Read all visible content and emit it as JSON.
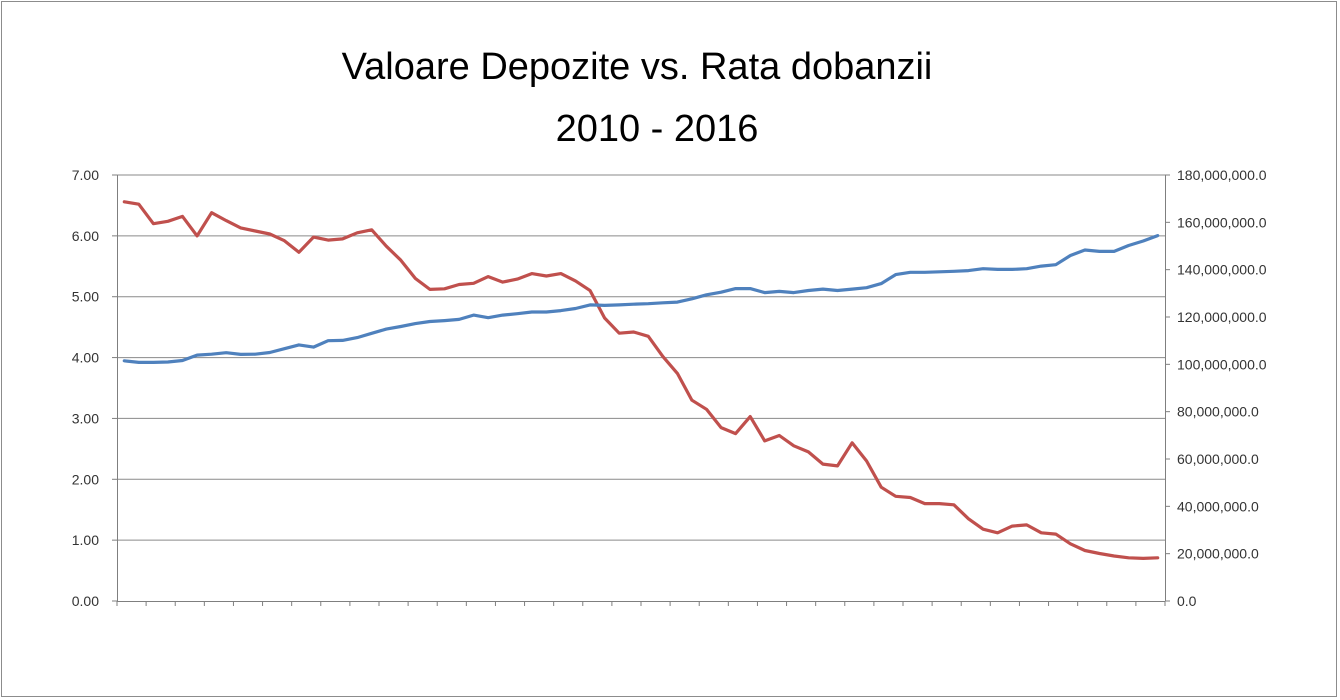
{
  "chart_data": {
    "type": "line",
    "title": "Valoare Depozite vs. Rata dobanzii",
    "subtitle": "2010 - 2016",
    "xlabel": "",
    "ylabel": "",
    "y_left_ticks": [
      "0.00",
      "1.00",
      "2.00",
      "3.00",
      "4.00",
      "5.00",
      "6.00",
      "7.00"
    ],
    "y_right_ticks": [
      "0.0",
      "20,000,000.0",
      "40,000,000.0",
      "60,000,000.0",
      "80,000,000.0",
      "100,000,000.0",
      "120,000,000.0",
      "140,000,000.0",
      "160,000,000.0",
      "180,000,000.0"
    ],
    "ylim_left": [
      0,
      7
    ],
    "ylim_right": [
      0,
      180000000
    ],
    "grid": true,
    "legend": "none",
    "x_count": 72,
    "series": [
      {
        "axis": "left",
        "color": "#c0504d",
        "values": [
          6.56,
          6.52,
          6.2,
          6.24,
          6.32,
          6.0,
          6.38,
          6.25,
          6.13,
          6.08,
          6.03,
          5.92,
          5.73,
          5.98,
          5.93,
          5.95,
          6.05,
          6.1,
          5.83,
          5.6,
          5.3,
          5.12,
          5.13,
          5.2,
          5.22,
          5.33,
          5.24,
          5.29,
          5.38,
          5.34,
          5.38,
          5.26,
          5.1,
          4.65,
          4.4,
          4.42,
          4.35,
          4.02,
          3.74,
          3.3,
          3.15,
          2.85,
          2.75,
          3.03,
          2.63,
          2.72,
          2.55,
          2.45,
          2.25,
          2.22,
          2.6,
          2.3,
          1.87,
          1.72,
          1.7,
          1.6,
          1.6,
          1.58,
          1.35,
          1.18,
          1.12,
          1.23,
          1.25,
          1.12,
          1.1,
          0.94,
          0.83,
          0.78,
          0.74,
          0.71,
          0.7,
          0.71
        ]
      },
      {
        "axis": "right",
        "color": "#4f81bd",
        "values": [
          101500000,
          100800000,
          100800000,
          101000000,
          101600000,
          103900000,
          104300000,
          104900000,
          104200000,
          104300000,
          105000000,
          106600000,
          108200000,
          107300000,
          110000000,
          110100000,
          111300000,
          113100000,
          114900000,
          116000000,
          117200000,
          118100000,
          118500000,
          119000000,
          120800000,
          119700000,
          120800000,
          121400000,
          122100000,
          122100000,
          122700000,
          123600000,
          125100000,
          124900000,
          125100000,
          125400000,
          125600000,
          126000000,
          126300000,
          127700000,
          129400000,
          130500000,
          132000000,
          132000000,
          130300000,
          130800000,
          130300000,
          131200000,
          131800000,
          131200000,
          131800000,
          132400000,
          134100000,
          137900000,
          138900000,
          138900000,
          139100000,
          139300000,
          139600000,
          140400000,
          140100000,
          140100000,
          140400000,
          141500000,
          142100000,
          146000000,
          148300000,
          147700000,
          147700000,
          150200000,
          152100000,
          154400000
        ]
      }
    ]
  }
}
